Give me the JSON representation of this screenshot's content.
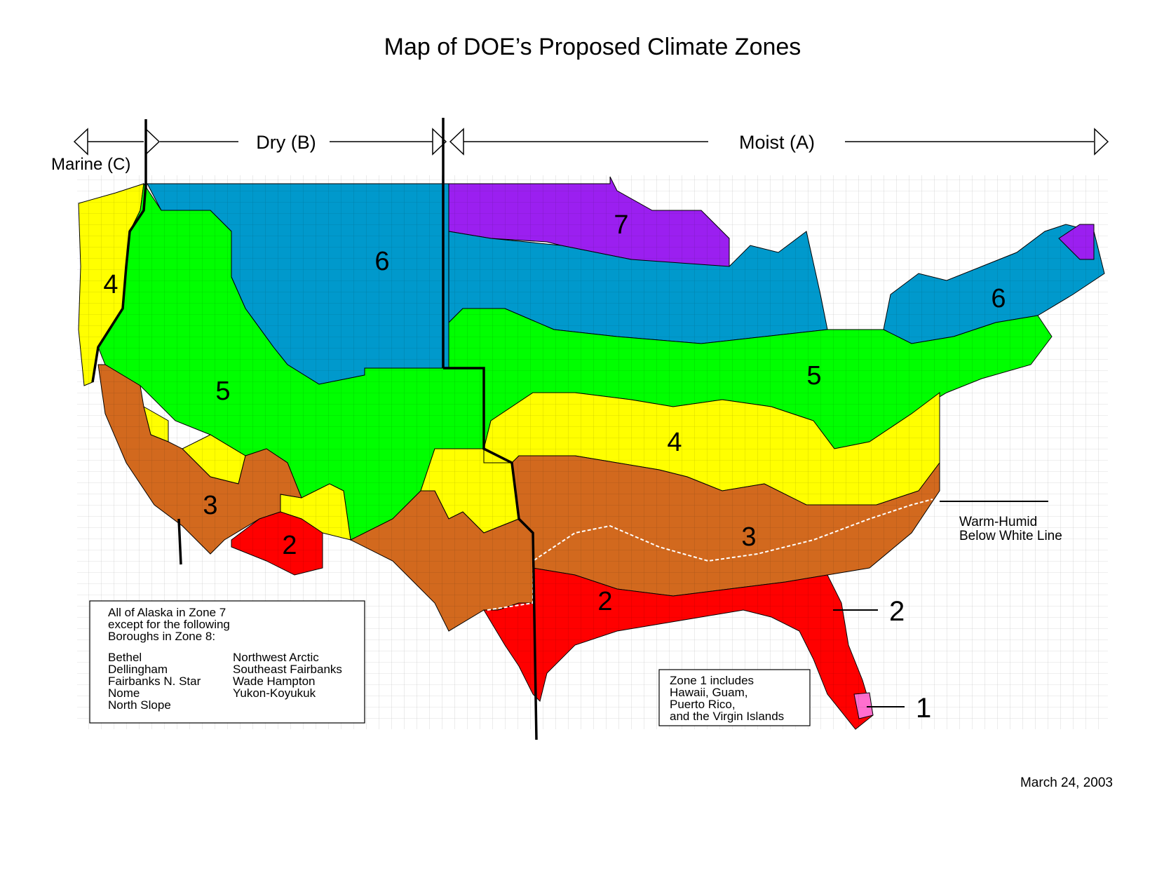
{
  "title": "Map of DOE’s Proposed Climate Zones",
  "regions": {
    "marine": "Marine (C)",
    "dry": "Dry (B)",
    "moist": "Moist (A)"
  },
  "zones": [
    {
      "id": "zone-4-west",
      "label": "4"
    },
    {
      "id": "zone-5-west",
      "label": "5"
    },
    {
      "id": "zone-3-west",
      "label": "3"
    },
    {
      "id": "zone-2-west",
      "label": "2"
    },
    {
      "id": "zone-6-west",
      "label": "6"
    },
    {
      "id": "zone-7",
      "label": "7"
    },
    {
      "id": "zone-6-east",
      "label": "6"
    },
    {
      "id": "zone-5-east",
      "label": "5"
    },
    {
      "id": "zone-4-east",
      "label": "4"
    },
    {
      "id": "zone-3-east",
      "label": "3"
    },
    {
      "id": "zone-2-east",
      "label": "2"
    }
  ],
  "warm_humid": {
    "line1": "Warm-Humid",
    "line2": "Below White Line"
  },
  "callouts": {
    "zone2": "2",
    "zone1": "1"
  },
  "alaska_box": {
    "line1": "All of Alaska in Zone 7",
    "line2": "except for the following",
    "line3": "Boroughs in Zone 8:",
    "col1": [
      "Bethel",
      "Dellingham",
      "Fairbanks N. Star",
      "Nome",
      "North Slope"
    ],
    "col2": [
      "Northwest Arctic",
      "Southeast Fairbanks",
      "Wade Hampton",
      "Yukon-Koyukuk"
    ]
  },
  "zone1_box": {
    "lines": [
      "Zone 1 includes",
      "Hawaii, Guam,",
      "Puerto Rico,",
      "and the Virgin Islands"
    ]
  },
  "date": "March 24, 2003",
  "colors": {
    "zone1": "#ff6fcf",
    "zone2": "#ff0000",
    "zone3": "#d2691e",
    "zone4": "#ffff00",
    "zone5": "#00ff00",
    "zone6": "#0099cc",
    "zone7": "#9b1ff0",
    "background": "#ffffff",
    "lines": "#000000"
  }
}
